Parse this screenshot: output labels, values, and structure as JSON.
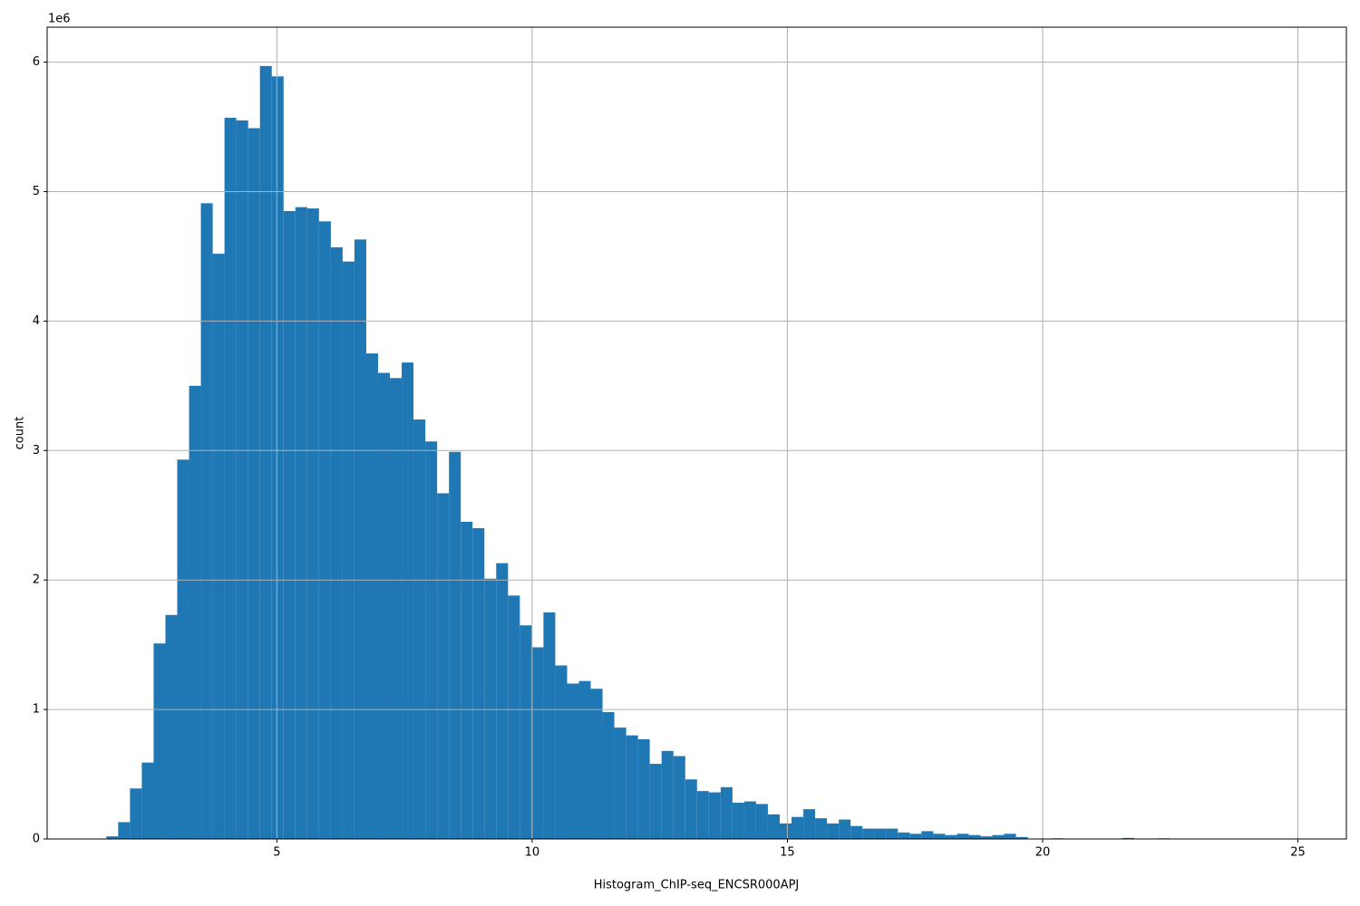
{
  "chart_data": {
    "type": "histogram",
    "x_label": "Histogram_ChIP-seq_ENCSR000APJ",
    "y_label": "count",
    "y_offset_text": "1e6",
    "color": "#1f77b4",
    "grid": true,
    "bins": [
      1.66,
      1.891,
      2.123,
      2.354,
      2.586,
      2.817,
      3.048,
      3.28,
      3.511,
      3.743,
      3.974,
      4.205,
      4.437,
      4.668,
      4.9,
      5.131,
      5.362,
      5.594,
      5.825,
      6.057,
      6.288,
      6.519,
      6.751,
      6.982,
      7.214,
      7.445,
      7.676,
      7.908,
      8.139,
      8.371,
      8.602,
      8.833,
      9.065,
      9.296,
      9.528,
      9.759,
      9.99,
      10.222,
      10.453,
      10.685,
      10.916,
      11.147,
      11.379,
      11.61,
      11.842,
      12.073,
      12.304,
      12.536,
      12.767,
      12.999,
      13.23,
      13.461,
      13.693,
      13.924,
      14.156,
      14.387,
      14.618,
      14.85,
      15.081,
      15.313,
      15.544,
      15.775,
      16.007,
      16.238,
      16.47,
      16.701,
      16.932,
      17.164,
      17.395,
      17.627,
      17.858,
      18.089,
      18.321,
      18.552,
      18.784,
      19.015,
      19.246,
      19.478,
      19.709,
      19.941,
      20.172,
      20.403,
      20.635,
      20.866,
      21.098,
      21.329,
      21.56,
      21.792,
      22.023,
      22.255,
      22.486,
      22.717,
      22.949,
      23.18,
      23.412,
      23.643,
      23.874,
      24.106,
      24.337,
      24.569,
      24.8
    ],
    "counts": [
      20000,
      130000,
      390000,
      590000,
      1510000,
      1730000,
      2930000,
      3500000,
      4910000,
      4520000,
      5570000,
      5550000,
      5490000,
      5970000,
      5890000,
      4850000,
      4880000,
      4870000,
      4770000,
      4570000,
      4460000,
      4630000,
      3750000,
      3600000,
      3560000,
      3680000,
      3240000,
      3070000,
      2670000,
      2990000,
      2450000,
      2400000,
      2010000,
      2130000,
      1880000,
      1650000,
      1480000,
      1750000,
      1340000,
      1200000,
      1220000,
      1160000,
      980000,
      860000,
      800000,
      770000,
      580000,
      680000,
      640000,
      460000,
      370000,
      360000,
      400000,
      280000,
      290000,
      270000,
      190000,
      120000,
      170000,
      230000,
      160000,
      120000,
      150000,
      100000,
      80000,
      80000,
      80000,
      50000,
      40000,
      60000,
      40000,
      30000,
      40000,
      30000,
      20000,
      30000,
      40000,
      15000,
      0,
      0,
      5000,
      0,
      0,
      0,
      0,
      0,
      8000,
      0,
      0,
      5000,
      0,
      0,
      0,
      0,
      0,
      0,
      0,
      0,
      0,
      1000
    ],
    "xlim": [
      0.5,
      25.95
    ],
    "xticks": [
      5,
      10,
      15,
      20,
      25
    ],
    "ylim": [
      0,
      6270000
    ],
    "yticks": [
      0,
      {
        "value": 1000000,
        "label": "1"
      },
      {
        "value": 2000000,
        "label": "2"
      },
      {
        "value": 3000000,
        "label": "3"
      },
      {
        "value": 4000000,
        "label": "4"
      },
      {
        "value": 5000000,
        "label": "5"
      },
      {
        "value": 6000000,
        "label": "6"
      }
    ]
  }
}
